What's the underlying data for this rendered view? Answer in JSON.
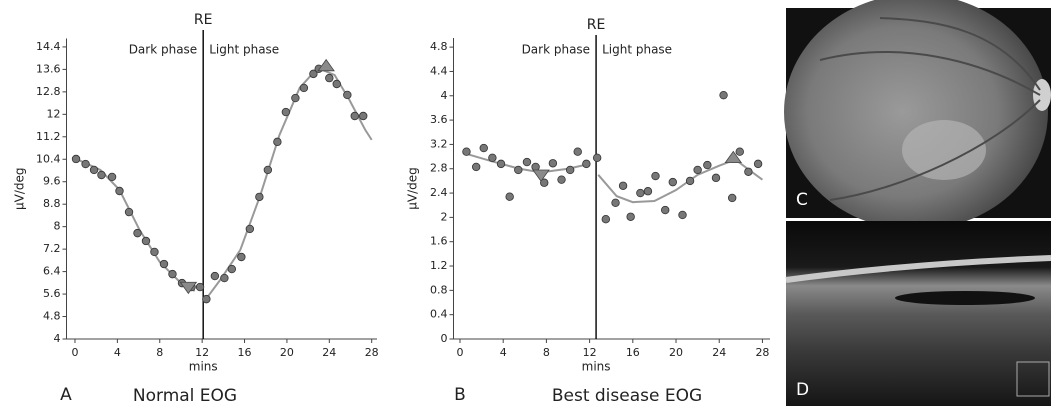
{
  "chart_data": [
    {
      "type": "scatter",
      "panel": "A",
      "caption": "Normal EOG",
      "top_label": "RE",
      "phase_labels": [
        "Dark phase",
        "Light phase"
      ],
      "x_label": "mins",
      "y_label": "µV/deg",
      "divider_x": 12.1,
      "xlim": [
        -0.8,
        28.5
      ],
      "ylim": [
        4,
        14.7
      ],
      "xticks": [
        0,
        4,
        8,
        12,
        16,
        20,
        24,
        28
      ],
      "yticks": [
        4,
        4.8,
        5.6,
        6.4,
        7.2,
        8,
        8.8,
        9.6,
        10.4,
        11.2,
        12,
        12.8,
        13.6,
        14.4
      ],
      "point_color": "#777777",
      "fit_color": "#999999",
      "marker_color": "#8a8a8a",
      "points": {
        "x": [
          0.1,
          1.0,
          1.8,
          2.5,
          3.5,
          4.2,
          5.1,
          5.9,
          6.7,
          7.5,
          8.4,
          9.2,
          10.1,
          11.0,
          11.8,
          12.4,
          13.2,
          14.1,
          14.8,
          15.7,
          16.5,
          17.4,
          18.2,
          19.1,
          19.9,
          20.8,
          21.6,
          22.5,
          23.0,
          24.0,
          24.7,
          25.7,
          26.4,
          27.2
        ],
        "y": [
          10.41,
          10.23,
          10.02,
          9.84,
          9.77,
          9.27,
          8.52,
          7.77,
          7.49,
          7.1,
          6.67,
          6.31,
          5.99,
          5.85,
          5.85,
          5.42,
          6.24,
          6.17,
          6.49,
          6.92,
          7.92,
          9.06,
          10.02,
          11.02,
          12.08,
          12.58,
          12.94,
          13.44,
          13.62,
          13.29,
          13.08,
          12.69,
          11.94,
          11.94
        ]
      },
      "fit": {
        "x": [
          0.3,
          2.4,
          4.2,
          6.1,
          8.0,
          9.9,
          11.3,
          12.3,
          12.3,
          13.7,
          15.6,
          17.5,
          19.3,
          21.2,
          22.9,
          24.5,
          25.9,
          27.4,
          28.0
        ],
        "y": [
          10.38,
          10.02,
          9.31,
          7.88,
          6.74,
          6.03,
          5.71,
          null,
          5.39,
          6.1,
          7.17,
          9.13,
          11.27,
          12.94,
          13.65,
          13.4,
          12.51,
          11.44,
          11.09
        ]
      },
      "markers": [
        {
          "shape": "down",
          "x": 10.7,
          "y": 5.85
        },
        {
          "shape": "up",
          "x": 23.7,
          "y": 13.72
        }
      ]
    },
    {
      "type": "scatter",
      "panel": "B",
      "caption": "Best disease EOG",
      "top_label": "RE",
      "phase_labels": [
        "Dark phase",
        "Light phase"
      ],
      "x_label": "mins",
      "y_label": "µV/deg",
      "divider_x": 12.6,
      "xlim": [
        -0.6,
        28.7
      ],
      "ylim": [
        0,
        4.95
      ],
      "xticks": [
        0,
        4,
        8,
        12,
        16,
        20,
        24,
        28
      ],
      "yticks": [
        0,
        0.4,
        0.8,
        1.2,
        1.6,
        2,
        2.4,
        2.8,
        3.2,
        3.6,
        4,
        4.4,
        4.8
      ],
      "point_color": "#777777",
      "fit_color": "#999999",
      "marker_color": "#8a8a8a",
      "points": {
        "x": [
          0.6,
          1.5,
          2.2,
          3.0,
          3.8,
          4.6,
          5.4,
          6.2,
          7.0,
          7.8,
          8.6,
          9.4,
          10.2,
          10.9,
          11.7,
          12.7,
          13.5,
          14.4,
          15.1,
          15.8,
          16.7,
          17.4,
          18.1,
          19.0,
          19.7,
          20.6,
          21.3,
          22.0,
          22.9,
          23.7,
          24.4,
          25.2,
          25.9,
          26.7,
          27.6
        ],
        "y": [
          3.08,
          2.83,
          3.14,
          2.98,
          2.88,
          2.34,
          2.78,
          2.91,
          2.83,
          2.57,
          2.89,
          2.62,
          2.78,
          3.08,
          2.88,
          2.98,
          1.97,
          2.24,
          2.52,
          2.01,
          2.4,
          2.43,
          2.68,
          2.12,
          2.58,
          2.04,
          2.6,
          2.78,
          2.86,
          2.65,
          4.01,
          2.32,
          3.08,
          2.75,
          2.88
        ]
      },
      "fit": {
        "x": [
          0.5,
          3,
          5.5,
          7.5,
          10,
          12,
          12.4,
          12.8,
          14.5,
          16,
          18,
          20,
          22,
          24,
          25.5,
          27,
          28
        ],
        "y": [
          3.05,
          2.92,
          2.8,
          2.74,
          2.8,
          2.88,
          null,
          2.7,
          2.35,
          2.25,
          2.27,
          2.45,
          2.7,
          2.85,
          2.95,
          2.75,
          2.62
        ]
      },
      "markers": [
        {
          "shape": "down",
          "x": 7.5,
          "y": 2.7
        },
        {
          "shape": "up",
          "x": 25.3,
          "y": 2.98
        }
      ]
    }
  ],
  "image_panels": [
    {
      "label": "C"
    },
    {
      "label": "D"
    }
  ]
}
